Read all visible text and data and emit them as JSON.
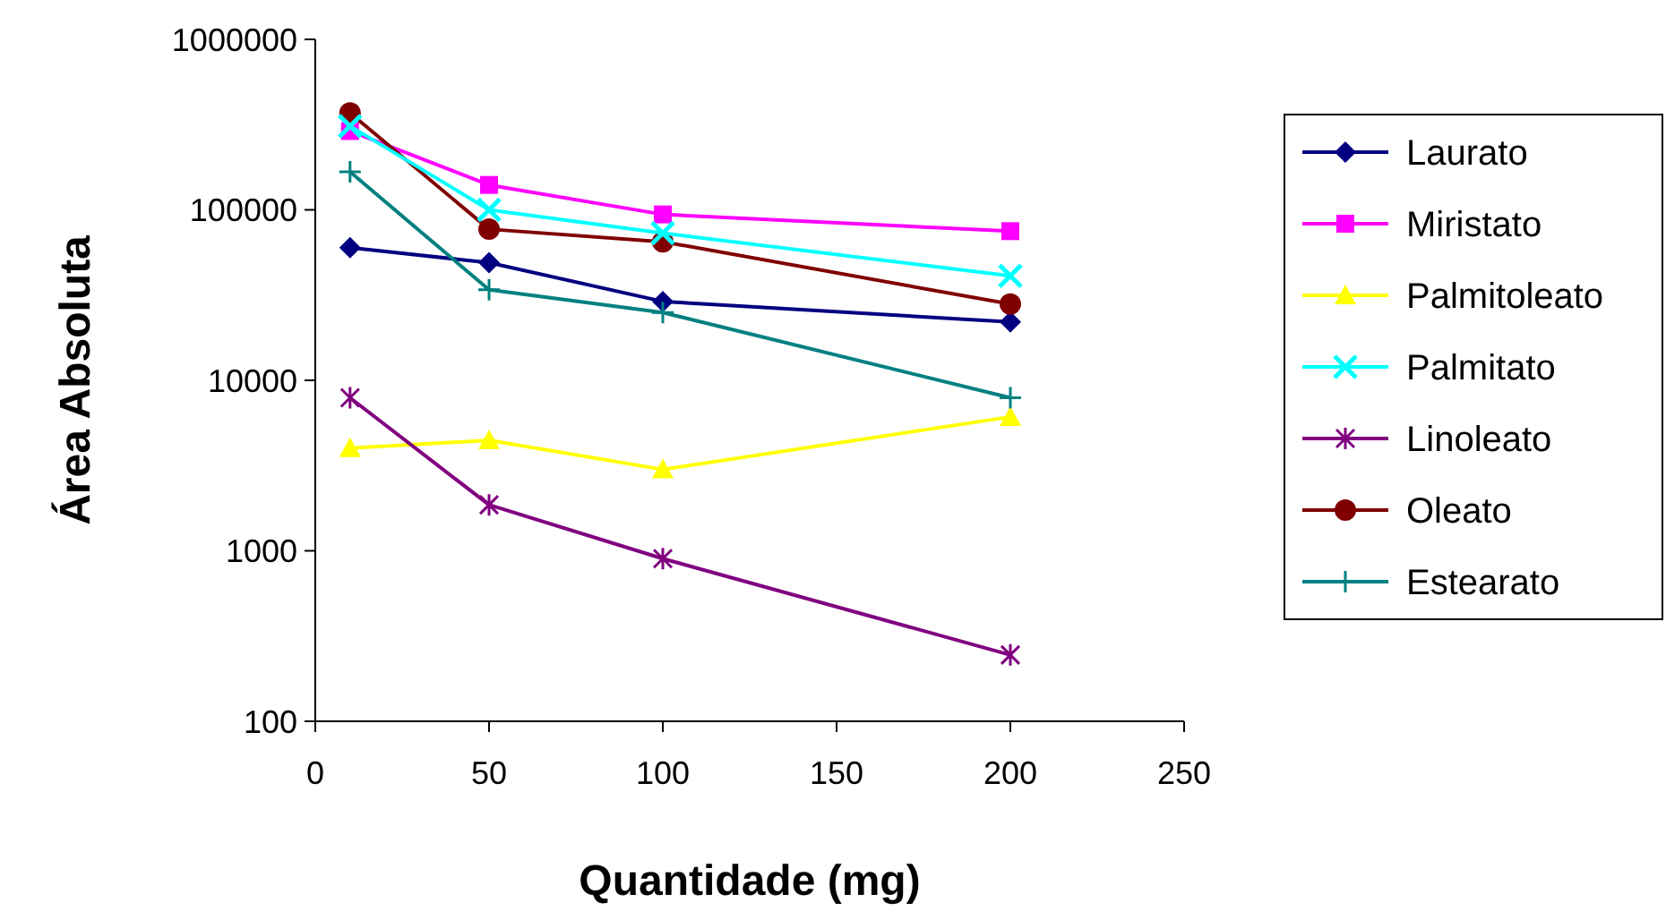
{
  "chart_data": {
    "type": "line",
    "xlabel": "Quantidade (mg)",
    "ylabel": "Área Absoluta",
    "x": [
      10,
      50,
      100,
      200
    ],
    "xlim": [
      0,
      250
    ],
    "xticks": [
      0,
      50,
      100,
      150,
      200,
      250
    ],
    "ylim": [
      100,
      1000000
    ],
    "yticks": [
      100,
      1000,
      10000,
      100000,
      1000000
    ],
    "log": "y",
    "grid": false,
    "legend": "right",
    "series": [
      {
        "name": "Laurato",
        "color": "#000080",
        "marker": "diamond",
        "values": [
          60000,
          49000,
          29000,
          22000
        ]
      },
      {
        "name": "Miristato",
        "color": "#ff00ff",
        "marker": "square",
        "values": [
          290000,
          140000,
          94000,
          75000
        ]
      },
      {
        "name": "Palmitoleato",
        "color": "#ffff00",
        "marker": "triangle",
        "values": [
          4000,
          4450,
          3000,
          6100
        ]
      },
      {
        "name": "Palmitato",
        "color": "#00ffff",
        "marker": "cross",
        "values": [
          310000,
          100000,
          73000,
          41000
        ]
      },
      {
        "name": "Linoleato",
        "color": "#800080",
        "marker": "cross",
        "values": [
          7900,
          1860,
          900,
          245
        ]
      },
      {
        "name": "Oleato",
        "color": "#800000",
        "marker": "circle",
        "values": [
          370000,
          77000,
          65000,
          28000
        ]
      },
      {
        "name": "Estearato",
        "color": "#008080",
        "marker": "cross",
        "values": [
          167000,
          34000,
          25000,
          7900
        ]
      }
    ]
  }
}
